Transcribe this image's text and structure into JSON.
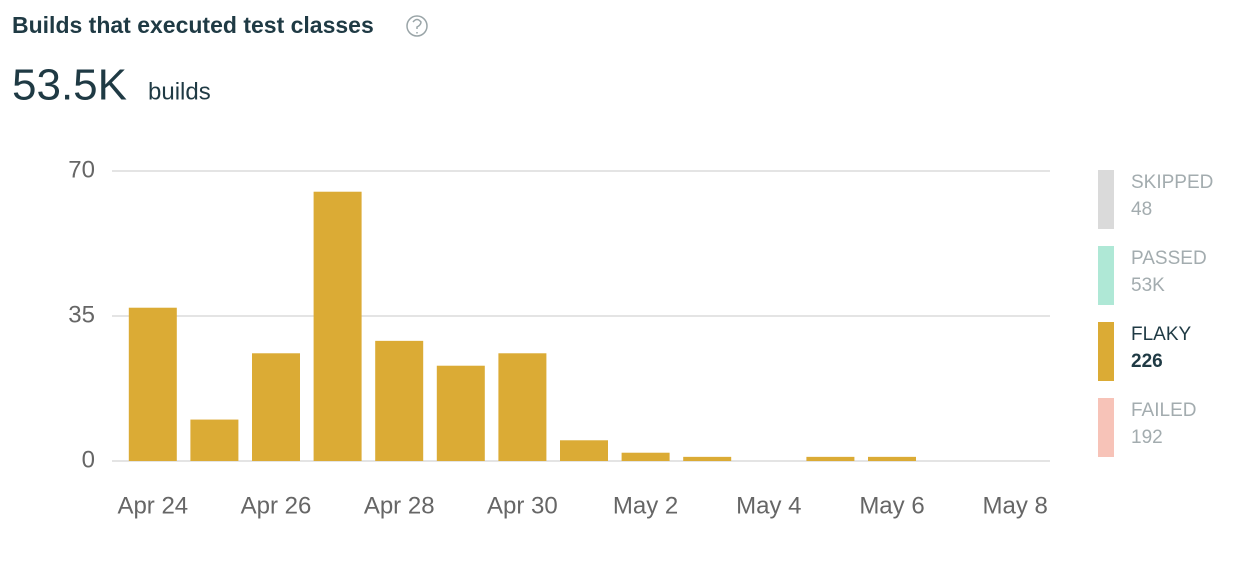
{
  "header": {
    "title": "Builds that executed test classes",
    "total": {
      "value": 53500,
      "label": "53.5K"
    },
    "total_unit": "builds"
  },
  "chart_data": {
    "type": "bar",
    "categories": [
      "Apr 24",
      null,
      "Apr 26",
      null,
      "Apr 28",
      null,
      "Apr 30",
      null,
      "May 2",
      null,
      "May 4",
      null,
      "May 6",
      null,
      "May 8"
    ],
    "series": [
      {
        "name": "FLAKY",
        "color": "#dbab35",
        "values": [
          37,
          10,
          26,
          65,
          29,
          23,
          26,
          5,
          2,
          1,
          0,
          1,
          1,
          0,
          0
        ]
      }
    ],
    "ylim": [
      0,
      70
    ],
    "yticks": [
      0,
      35,
      70
    ],
    "grid": true,
    "legend": [
      {
        "name": "SKIPPED",
        "count": 48,
        "color": "#d6d6d6",
        "dimmed": true
      },
      {
        "name": "PASSED",
        "count": {
          "value": 53000,
          "label": "53K"
        },
        "color": "#a6e5d2",
        "dimmed": true
      },
      {
        "name": "FLAKY",
        "count": 226,
        "color": "#dbab35",
        "dimmed": false
      },
      {
        "name": "FAILED",
        "count": 192,
        "color": "#f6bcb0",
        "dimmed": true
      }
    ]
  }
}
